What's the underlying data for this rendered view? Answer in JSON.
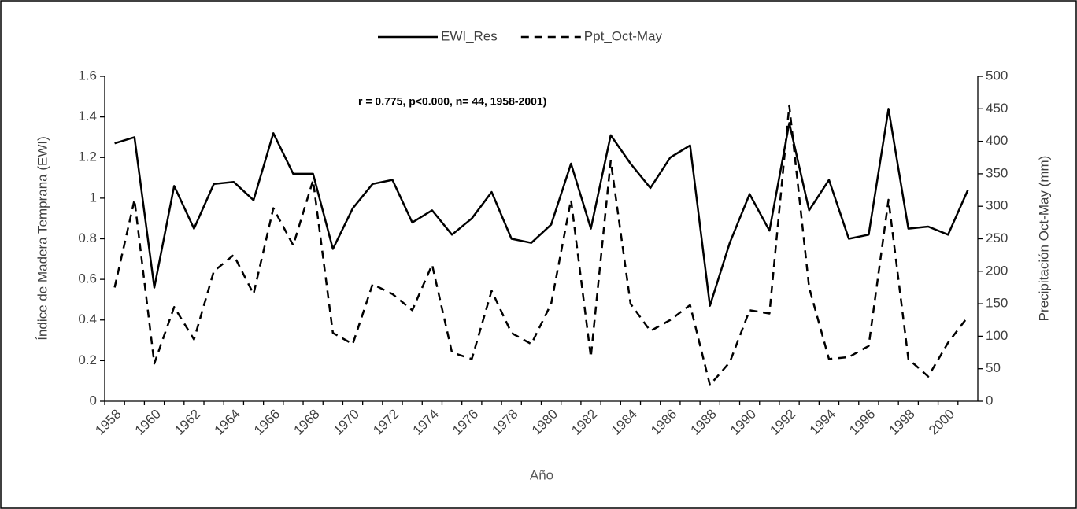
{
  "chart_data": {
    "type": "line",
    "annotation": "r = 0.775, p<0.000, n= 44, 1958-2001)",
    "x_label": "Año",
    "y_label": "Índice de Madera Temprana (EWI)",
    "y2_label": "Precipitación Oct-May (mm)",
    "categories": [
      "1958",
      null,
      "1960",
      null,
      "1962",
      null,
      "1964",
      null,
      "1966",
      null,
      "1968",
      null,
      "1970",
      null,
      "1972",
      null,
      "1974",
      null,
      "1976",
      null,
      "1978",
      null,
      "1980",
      null,
      "1982",
      null,
      "1984",
      null,
      "1986",
      null,
      "1988",
      null,
      "1990",
      null,
      "1992",
      null,
      "1994",
      null,
      "1996",
      null,
      "1998",
      null,
      "2000",
      null
    ],
    "series": [
      {
        "name": "EWI_Res",
        "color": "#000000",
        "dash": "solid",
        "values": [
          1.27,
          1.3,
          0.56,
          1.06,
          0.85,
          1.07,
          1.08,
          0.99,
          1.32,
          1.12,
          1.12,
          0.75,
          0.95,
          1.07,
          1.09,
          0.88,
          0.94,
          0.82,
          0.9,
          1.03,
          0.8,
          0.78,
          0.87,
          1.17,
          0.85,
          1.31,
          1.17,
          1.05,
          1.2,
          1.26,
          0.47,
          0.78,
          1.02,
          0.84,
          1.37,
          0.94,
          1.09,
          0.8,
          0.82,
          1.44,
          0.85,
          0.86,
          0.82,
          1.04
        ]
      },
      {
        "name": "Ppt_Oct-May",
        "color": "#000000",
        "dash": "dashed",
        "axis": "y2",
        "values": [
          175,
          310,
          58,
          145,
          95,
          200,
          225,
          165,
          297,
          240,
          340,
          105,
          88,
          180,
          165,
          140,
          210,
          75,
          65,
          170,
          105,
          88,
          150,
          310,
          68,
          370,
          150,
          108,
          125,
          148,
          25,
          60,
          140,
          135,
          455,
          175,
          65,
          68,
          85,
          310,
          65,
          38,
          90,
          130
        ]
      }
    ],
    "ylim": [
      0,
      1.6
    ],
    "yticks": [
      0,
      0.2,
      0.4,
      0.6,
      0.8,
      1,
      1.2,
      1.4,
      1.6
    ],
    "y2lim": [
      0,
      500
    ],
    "y2ticks": [
      0,
      50,
      100,
      150,
      200,
      250,
      300,
      350,
      400,
      450,
      500
    ],
    "legend": "top",
    "grid": false
  }
}
